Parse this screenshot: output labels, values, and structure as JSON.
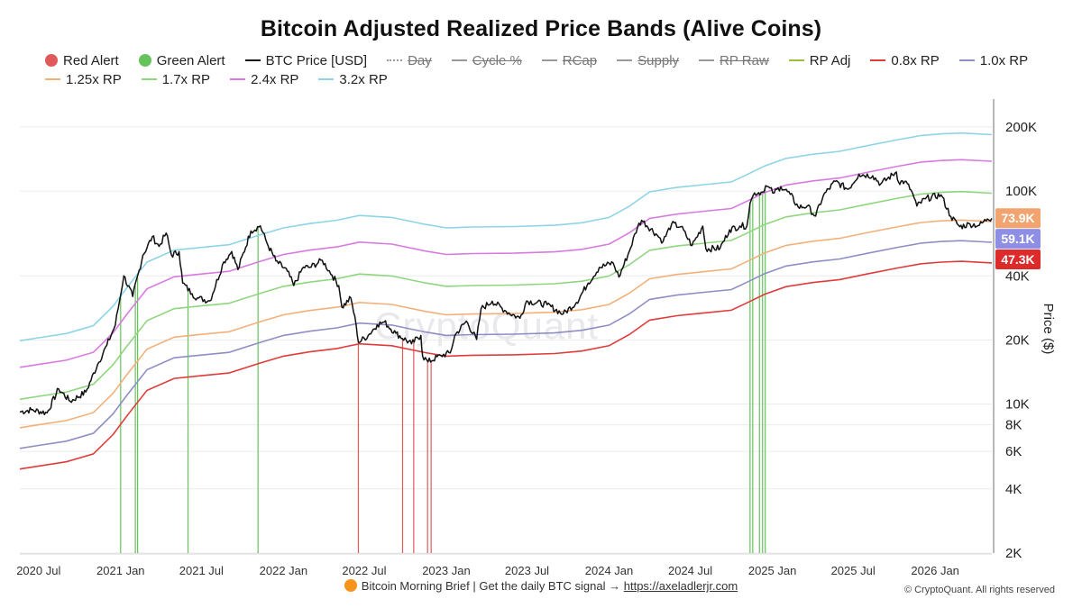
{
  "chart_data": {
    "type": "line",
    "title": "Bitcoin Adjusted Realized Price Bands (Alive Coins)",
    "ylabel": "Price ($)",
    "yscale": "log",
    "ylim": [
      2000,
      250000
    ],
    "xlim": [
      "2020-05-20",
      "2026-05-08"
    ],
    "grid": true,
    "legend_position": "top",
    "x_ticks": [
      "2020 Jul",
      "2021 Jan",
      "2021 Jul",
      "2022 Jan",
      "2022 Jul",
      "2023 Jan",
      "2023 Jul",
      "2024 Jan",
      "2024 Jul",
      "2025 Jan",
      "2025 Jul",
      "2026 Jan"
    ],
    "x_tick_dates": [
      "2020-07-01",
      "2021-01-01",
      "2021-07-01",
      "2022-01-01",
      "2022-07-01",
      "2023-01-01",
      "2023-07-01",
      "2024-01-01",
      "2024-07-01",
      "2025-01-01",
      "2025-07-01",
      "2026-01-01"
    ],
    "y_ticks": [
      200000,
      100000,
      40000,
      20000,
      10000,
      8000,
      6000,
      4000,
      2000
    ],
    "y_tick_labels": [
      "200K",
      "100K",
      "40K",
      "20K",
      "10K",
      "8K",
      "6K",
      "4K",
      "2K"
    ],
    "legend": [
      {
        "label": "Red Alert",
        "kind": "dot",
        "color": "#e05a5a",
        "active": true
      },
      {
        "label": "Green Alert",
        "kind": "dot",
        "color": "#66c35c",
        "active": true
      },
      {
        "label": "BTC Price [USD]",
        "kind": "line",
        "color": "#111111",
        "active": true
      },
      {
        "label": "Day",
        "kind": "dotted",
        "color": "#999999",
        "active": false
      },
      {
        "label": "Cycle %",
        "kind": "line",
        "color": "#999999",
        "active": false
      },
      {
        "label": "RCap",
        "kind": "line",
        "color": "#999999",
        "active": false
      },
      {
        "label": "Supply",
        "kind": "line",
        "color": "#999999",
        "active": false
      },
      {
        "label": "RP Raw",
        "kind": "line",
        "color": "#999999",
        "active": false
      },
      {
        "label": "RP Adj",
        "kind": "line",
        "color": "#9cbf3a",
        "active": true
      },
      {
        "label": "0.8x RP",
        "kind": "line",
        "color": "#e03b3b",
        "active": true
      },
      {
        "label": "1.0x RP",
        "kind": "line",
        "color": "#8e8ec4",
        "active": true
      },
      {
        "label": "1.25x RP",
        "kind": "line",
        "color": "#f2b07a",
        "active": true
      },
      {
        "label": "1.7x RP",
        "kind": "line",
        "color": "#8fd67f",
        "active": true
      },
      {
        "label": "2.4x RP",
        "kind": "line",
        "color": "#d77be0",
        "active": true
      },
      {
        "label": "3.2x RP",
        "kind": "line",
        "color": "#8ed4e6",
        "active": true
      }
    ],
    "realized_price_base": {
      "dates": [
        "2020-05-20",
        "2020-07-01",
        "2020-09-01",
        "2020-11-01",
        "2020-12-15",
        "2021-01-15",
        "2021-03-01",
        "2021-05-01",
        "2021-07-01",
        "2021-09-01",
        "2021-11-10",
        "2022-01-01",
        "2022-03-01",
        "2022-05-01",
        "2022-06-20",
        "2022-09-01",
        "2022-11-15",
        "2023-01-01",
        "2023-03-01",
        "2023-06-01",
        "2023-09-01",
        "2023-11-01",
        "2024-01-01",
        "2024-02-15",
        "2024-04-01",
        "2024-06-01",
        "2024-08-01",
        "2024-10-01",
        "2024-11-01",
        "2024-12-15",
        "2025-02-01",
        "2025-04-01",
        "2025-06-01",
        "2025-08-01",
        "2025-10-10",
        "2025-12-01",
        "2026-01-15",
        "2026-03-01",
        "2026-05-08"
      ],
      "values": [
        6200,
        6400,
        6700,
        7300,
        9000,
        11000,
        14500,
        16500,
        17000,
        17500,
        19500,
        21000,
        22000,
        22800,
        24000,
        23500,
        21800,
        21000,
        21200,
        21300,
        21600,
        22200,
        23500,
        26500,
        31000,
        32500,
        33500,
        34500,
        37000,
        41000,
        44500,
        46500,
        48000,
        51000,
        54500,
        57000,
        58000,
        58500,
        57500
      ]
    },
    "band_multipliers": {
      "0.8x RP": 0.8,
      "1.0x RP": 1.0,
      "1.25x RP": 1.25,
      "1.7x RP": 1.7,
      "2.4x RP": 2.4,
      "3.2x RP": 3.2
    },
    "series": [
      {
        "name": "BTC Price [USD]",
        "dates": [
          "2020-05-20",
          "2020-06-15",
          "2020-07-20",
          "2020-08-15",
          "2020-09-10",
          "2020-10-15",
          "2020-11-10",
          "2020-12-01",
          "2020-12-20",
          "2021-01-08",
          "2021-01-28",
          "2021-02-20",
          "2021-03-13",
          "2021-03-28",
          "2021-04-13",
          "2021-04-25",
          "2021-05-12",
          "2021-05-20",
          "2021-06-10",
          "2021-06-22",
          "2021-07-20",
          "2021-08-20",
          "2021-09-07",
          "2021-09-21",
          "2021-10-20",
          "2021-11-10",
          "2021-11-25",
          "2021-12-15",
          "2022-01-10",
          "2022-01-24",
          "2022-02-15",
          "2022-03-01",
          "2022-03-29",
          "2022-04-20",
          "2022-05-05",
          "2022-05-12",
          "2022-06-01",
          "2022-06-13",
          "2022-06-18",
          "2022-07-10",
          "2022-07-30",
          "2022-08-15",
          "2022-09-10",
          "2022-10-15",
          "2022-11-05",
          "2022-11-09",
          "2022-11-21",
          "2022-12-20",
          "2023-01-10",
          "2023-01-20",
          "2023-02-15",
          "2023-03-10",
          "2023-03-20",
          "2023-04-14",
          "2023-05-15",
          "2023-06-15",
          "2023-06-30",
          "2023-08-15",
          "2023-09-20",
          "2023-10-20",
          "2023-11-15",
          "2023-12-10",
          "2024-01-10",
          "2024-01-23",
          "2024-02-15",
          "2024-03-05",
          "2024-03-14",
          "2024-04-15",
          "2024-05-01",
          "2024-05-20",
          "2024-06-10",
          "2024-07-05",
          "2024-07-29",
          "2024-08-05",
          "2024-09-06",
          "2024-09-27",
          "2024-10-20",
          "2024-11-05",
          "2024-11-12",
          "2024-11-22",
          "2024-12-10",
          "2024-12-17",
          "2025-01-05",
          "2025-01-20",
          "2025-02-10",
          "2025-02-28",
          "2025-03-20",
          "2025-04-08",
          "2025-04-25",
          "2025-05-22",
          "2025-06-20",
          "2025-07-14",
          "2025-08-14",
          "2025-09-01",
          "2025-10-06",
          "2025-10-11",
          "2025-10-25",
          "2025-11-08",
          "2025-11-21",
          "2025-12-10",
          "2026-01-14",
          "2026-02-05",
          "2026-02-25",
          "2026-03-20",
          "2026-04-10",
          "2026-04-28",
          "2026-05-08"
        ],
        "values": [
          9200,
          9400,
          9100,
          11800,
          10300,
          11400,
          15300,
          18900,
          23500,
          40000,
          32000,
          50000,
          61000,
          55000,
          63500,
          50000,
          52000,
          37000,
          33000,
          31500,
          30500,
          46500,
          52000,
          42800,
          65000,
          68700,
          57000,
          47000,
          42000,
          36000,
          44000,
          43800,
          47300,
          40300,
          36000,
          28500,
          31500,
          23500,
          19500,
          21000,
          23600,
          24300,
          21500,
          19200,
          21000,
          16800,
          15800,
          16900,
          17400,
          21000,
          24500,
          20100,
          28000,
          30400,
          27300,
          25300,
          30500,
          29300,
          26500,
          30000,
          37000,
          43800,
          46000,
          39500,
          52000,
          68000,
          73000,
          63000,
          58000,
          70000,
          68000,
          55500,
          68500,
          53500,
          54000,
          65800,
          68500,
          68700,
          88000,
          98000,
          99000,
          106000,
          98000,
          105000,
          96500,
          84000,
          85000,
          76300,
          95000,
          111000,
          102000,
          120000,
          118000,
          108000,
          123000,
          110000,
          111000,
          101000,
          85000,
          92000,
          96000,
          76000,
          68000,
          70000,
          69000,
          74000,
          74500
        ]
      }
    ],
    "red_alerts": [
      "2022-06-18",
      "2022-09-25",
      "2022-10-20",
      "2022-11-20",
      "2022-11-28"
    ],
    "green_alerts": [
      "2021-01-01",
      "2021-02-03",
      "2021-02-08",
      "2021-06-01",
      "2021-11-05",
      "2024-11-12",
      "2024-11-18",
      "2024-12-03",
      "2024-12-10",
      "2024-12-16"
    ],
    "current_value_badges": [
      {
        "label": "73.9K",
        "value": 73900,
        "color": "#f2a470"
      },
      {
        "label": "59.1K",
        "value": 59100,
        "color": "#8e8ee4"
      },
      {
        "label": "47.3K",
        "value": 47300,
        "color": "#dd2a2a"
      }
    ]
  },
  "footer": {
    "text": "Bitcoin Morning Brief | Get the daily BTC signal → ",
    "link": "https://axeladlerjr.com",
    "copyright": "© CryptoQuant. All rights reserved"
  },
  "watermark": "CryptoQuant"
}
